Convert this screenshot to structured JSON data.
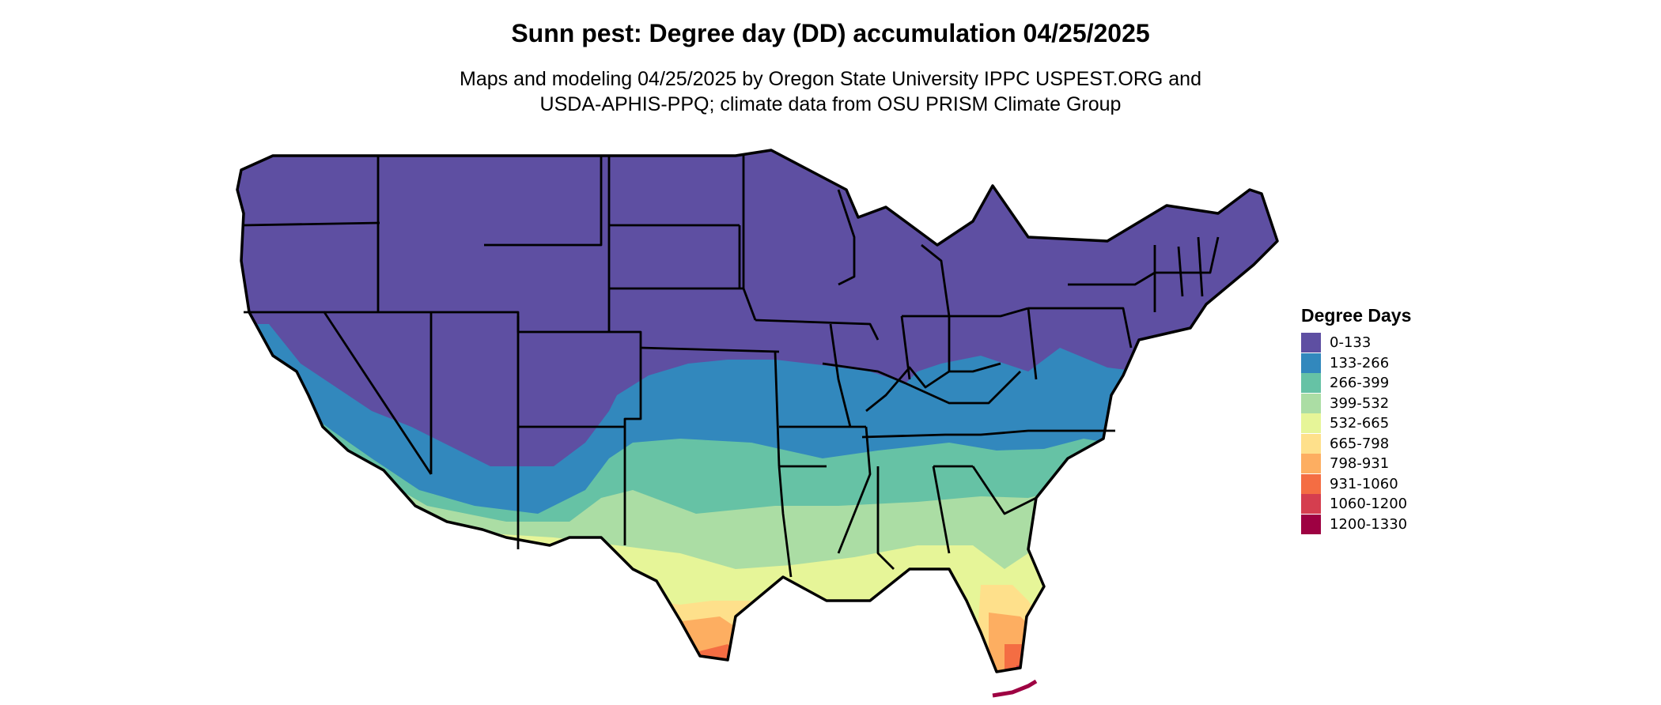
{
  "title": "Sunn pest: Degree day (DD) accumulation 04/25/2025",
  "subtitle": {
    "line1": "Maps and modeling 04/25/2025 by Oregon State University IPPC USPEST.ORG and",
    "line2": "USDA-APHIS-PPQ; climate data from OSU PRISM Climate Group"
  },
  "legend": {
    "title": "Degree Days",
    "items": [
      {
        "label": "0-133",
        "color": "#5e4fa2"
      },
      {
        "label": "133-266",
        "color": "#3288bd"
      },
      {
        "label": "266-399",
        "color": "#66c2a5"
      },
      {
        "label": "399-532",
        "color": "#abdda4"
      },
      {
        "label": "532-665",
        "color": "#e6f598"
      },
      {
        "label": "665-798",
        "color": "#fee08b"
      },
      {
        "label": "798-931",
        "color": "#fdae61"
      },
      {
        "label": "931-1060",
        "color": "#f46d43"
      },
      {
        "label": "1060-1200",
        "color": "#d53e4f"
      },
      {
        "label": "1200-1330",
        "color": "#9e0142"
      }
    ]
  }
}
